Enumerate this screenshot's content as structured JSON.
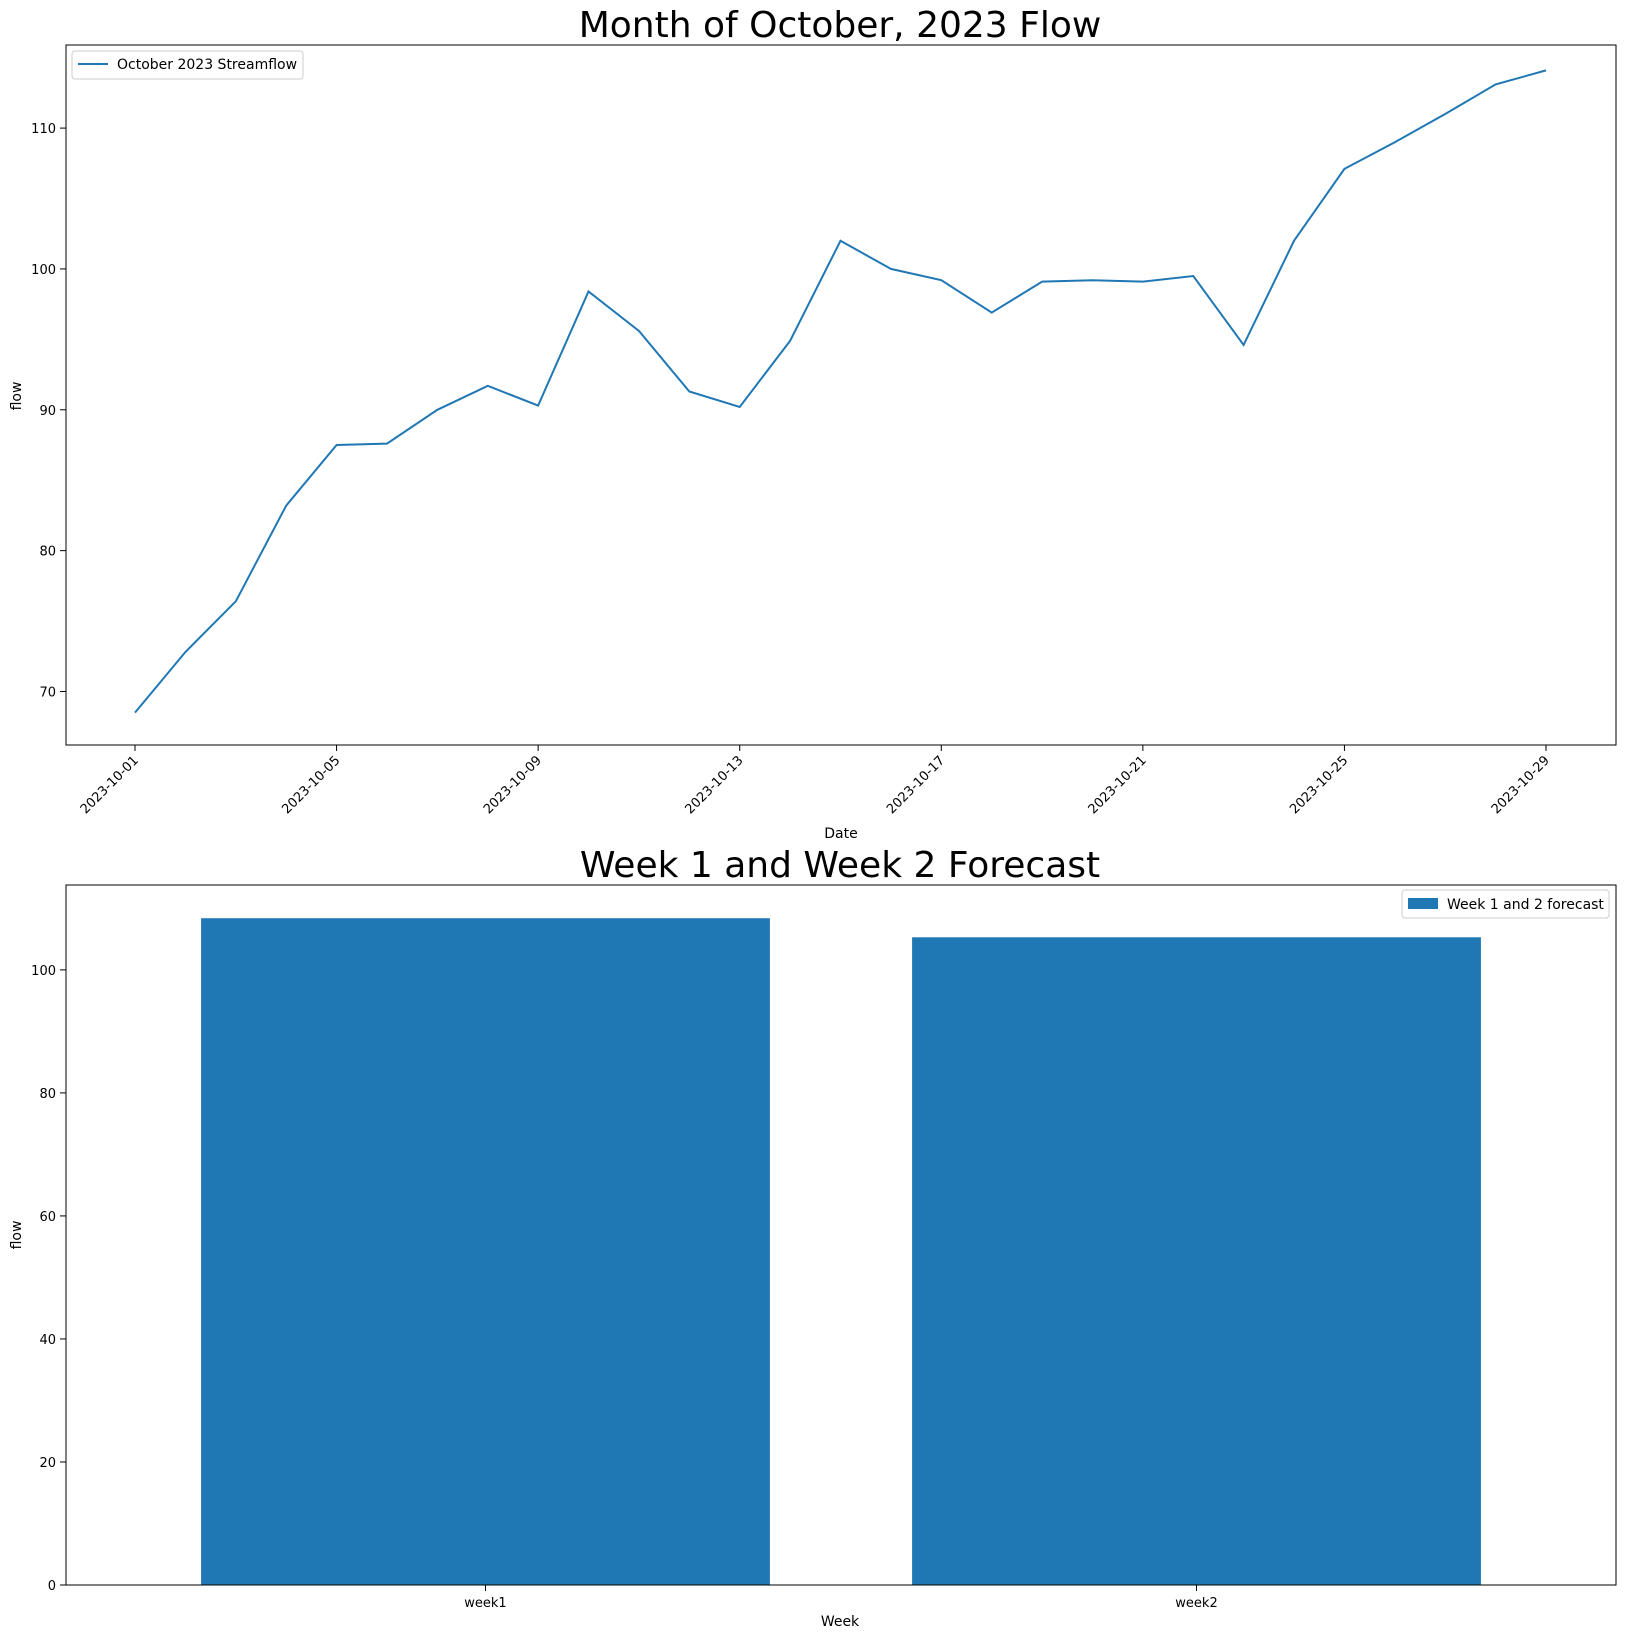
{
  "chart_data": [
    {
      "type": "line",
      "title": "Month of October, 2023 Flow",
      "xlabel": "Date",
      "ylabel": "flow",
      "ylim": [
        66.2,
        115.9
      ],
      "yticks": [
        70,
        80,
        90,
        100,
        110
      ],
      "xticks": [
        "2023-10-01",
        "2023-10-05",
        "2023-10-09",
        "2023-10-13",
        "2023-10-17",
        "2023-10-21",
        "2023-10-25",
        "2023-10-29"
      ],
      "legend_loc": "upper left",
      "grid": false,
      "series": [
        {
          "name": "October 2023 Streamflow",
          "color": "#1f77b4",
          "x": [
            "2023-10-01",
            "2023-10-02",
            "2023-10-03",
            "2023-10-04",
            "2023-10-05",
            "2023-10-06",
            "2023-10-07",
            "2023-10-08",
            "2023-10-09",
            "2023-10-10",
            "2023-10-11",
            "2023-10-12",
            "2023-10-13",
            "2023-10-14",
            "2023-10-15",
            "2023-10-16",
            "2023-10-17",
            "2023-10-18",
            "2023-10-19",
            "2023-10-20",
            "2023-10-21",
            "2023-10-22",
            "2023-10-23",
            "2023-10-24",
            "2023-10-25",
            "2023-10-26",
            "2023-10-27",
            "2023-10-28",
            "2023-10-29"
          ],
          "values": [
            68.5,
            72.8,
            76.4,
            83.2,
            87.5,
            87.6,
            90.0,
            91.7,
            90.3,
            98.4,
            95.6,
            91.3,
            90.2,
            94.9,
            102.0,
            100.0,
            99.2,
            96.9,
            99.1,
            99.2,
            99.1,
            99.5,
            94.6,
            102.0,
            107.1,
            109.0,
            111.0,
            113.1,
            114.1
          ]
        }
      ]
    },
    {
      "type": "bar",
      "title": "Week 1 and Week 2 Forecast",
      "xlabel": "Week",
      "ylabel": "flow",
      "ylim": [
        0,
        113.8
      ],
      "yticks": [
        0,
        20,
        40,
        60,
        80,
        100
      ],
      "legend_loc": "upper right",
      "grid": false,
      "categories": [
        "week1",
        "week2"
      ],
      "series": [
        {
          "name": "Week 1 and 2 forecast",
          "color": "#1f77b4",
          "values": [
            108.4,
            105.3
          ]
        }
      ]
    }
  ]
}
